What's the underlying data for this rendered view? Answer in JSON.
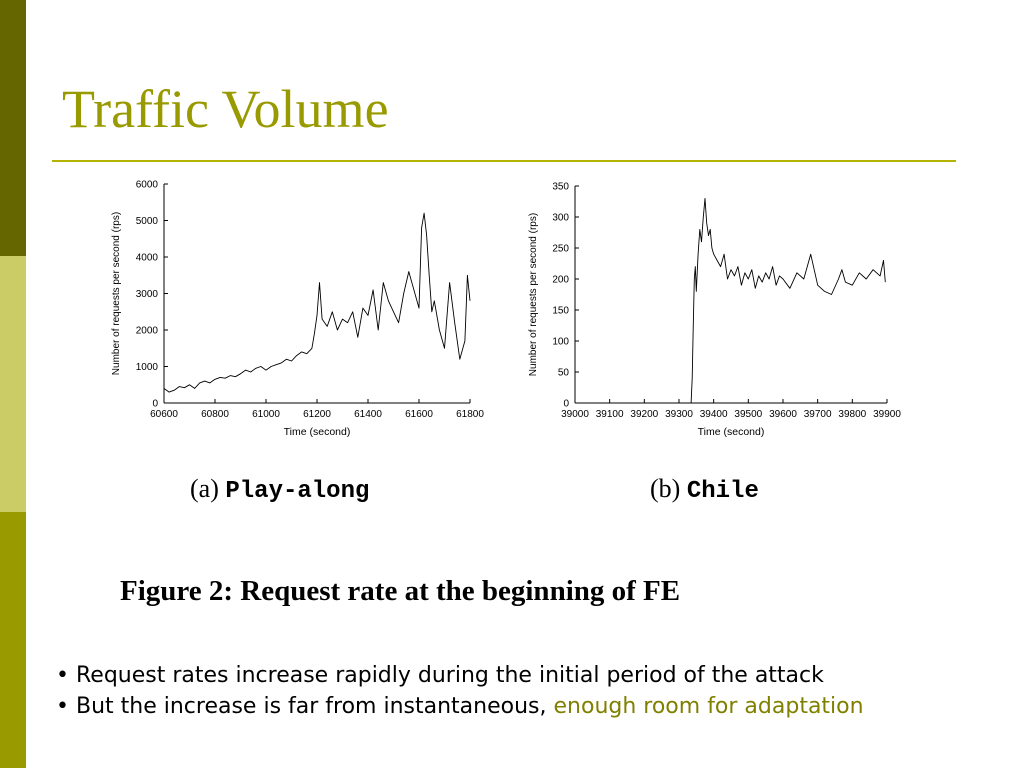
{
  "slide": {
    "title": "Traffic Volume",
    "figure_caption": "Figure 2: Request rate at the beginning of FE",
    "bullets": [
      {
        "bullet": "•",
        "text": "Request rates increase rapidly during the initial period of the attack",
        "highlight": ""
      },
      {
        "bullet": "•",
        "text": "But the increase is far from instantaneous, ",
        "highlight": "enough room for adaptation"
      }
    ],
    "colors": {
      "title": "#999900",
      "highlight": "#808000",
      "bar_top": "#666600",
      "bar_middle": "#CCCC66",
      "bar_bottom": "#999900"
    }
  },
  "chart_data": [
    {
      "type": "line",
      "subcaption_prefix": "(a)",
      "subcaption_name": "Play-along",
      "xlabel": "Time (second)",
      "ylabel": "Number of requests per second (rps)",
      "xlim": [
        60600,
        61800
      ],
      "ylim": [
        0,
        6000
      ],
      "xticks": [
        60600,
        60800,
        61000,
        61200,
        61400,
        61600,
        61800
      ],
      "yticks": [
        0,
        1000,
        2000,
        3000,
        4000,
        5000,
        6000
      ],
      "series": [
        {
          "x": [
            60600,
            60620,
            60640,
            60660,
            60680,
            60700,
            60720,
            60740,
            60760,
            60780,
            60800,
            60820,
            60840,
            60860,
            60880,
            60900,
            60920,
            60940,
            60960,
            60980,
            61000,
            61020,
            61040,
            61060,
            61080,
            61100,
            61120,
            61140,
            61160,
            61180,
            61190,
            61200,
            61210,
            61220,
            61240,
            61260,
            61280,
            61300,
            61320,
            61340,
            61360,
            61380,
            61400,
            61420,
            61440,
            61460,
            61480,
            61500,
            61520,
            61540,
            61560,
            61580,
            61600,
            61610,
            61620,
            61630,
            61640,
            61650,
            61660,
            61680,
            61700,
            61720,
            61740,
            61760,
            61780,
            61790,
            61800
          ],
          "y": [
            400,
            300,
            350,
            450,
            420,
            500,
            400,
            550,
            600,
            550,
            650,
            700,
            680,
            750,
            720,
            800,
            900,
            850,
            950,
            1000,
            900,
            1000,
            1050,
            1100,
            1200,
            1150,
            1300,
            1400,
            1350,
            1500,
            1900,
            2400,
            3300,
            2300,
            2100,
            2500,
            2000,
            2300,
            2200,
            2500,
            1800,
            2600,
            2400,
            3100,
            2000,
            3300,
            2800,
            2500,
            2200,
            3000,
            3600,
            3100,
            2600,
            4800,
            5200,
            4600,
            3500,
            2500,
            2800,
            2000,
            1500,
            3300,
            2200,
            1200,
            1700,
            3500,
            2800
          ]
        }
      ]
    },
    {
      "type": "line",
      "subcaption_prefix": "(b)",
      "subcaption_name": "Chile",
      "xlabel": "Time (second)",
      "ylabel": "Number of requests per second (rps)",
      "xlim": [
        39000,
        39900
      ],
      "ylim": [
        0,
        350
      ],
      "xticks": [
        39000,
        39100,
        39200,
        39300,
        39400,
        39500,
        39600,
        39700,
        39800,
        39900
      ],
      "yticks": [
        0,
        50,
        100,
        150,
        200,
        250,
        300,
        350
      ],
      "series": [
        {
          "x": [
            39335,
            39338,
            39341,
            39344,
            39347,
            39350,
            39355,
            39360,
            39365,
            39370,
            39375,
            39380,
            39385,
            39390,
            39395,
            39400,
            39410,
            39420,
            39430,
            39440,
            39450,
            39460,
            39470,
            39480,
            39490,
            39500,
            39510,
            39520,
            39530,
            39540,
            39550,
            39560,
            39570,
            39580,
            39590,
            39600,
            39620,
            39640,
            39660,
            39680,
            39700,
            39720,
            39740,
            39760,
            39770,
            39780,
            39800,
            39820,
            39840,
            39860,
            39880,
            39890,
            39895
          ],
          "y": [
            0,
            40,
            120,
            200,
            220,
            180,
            240,
            280,
            260,
            300,
            330,
            290,
            270,
            280,
            250,
            240,
            230,
            220,
            240,
            200,
            215,
            205,
            220,
            190,
            210,
            200,
            215,
            185,
            205,
            195,
            210,
            200,
            220,
            190,
            205,
            200,
            185,
            210,
            200,
            240,
            190,
            180,
            175,
            200,
            215,
            195,
            190,
            210,
            200,
            215,
            205,
            230,
            195
          ]
        }
      ]
    }
  ]
}
